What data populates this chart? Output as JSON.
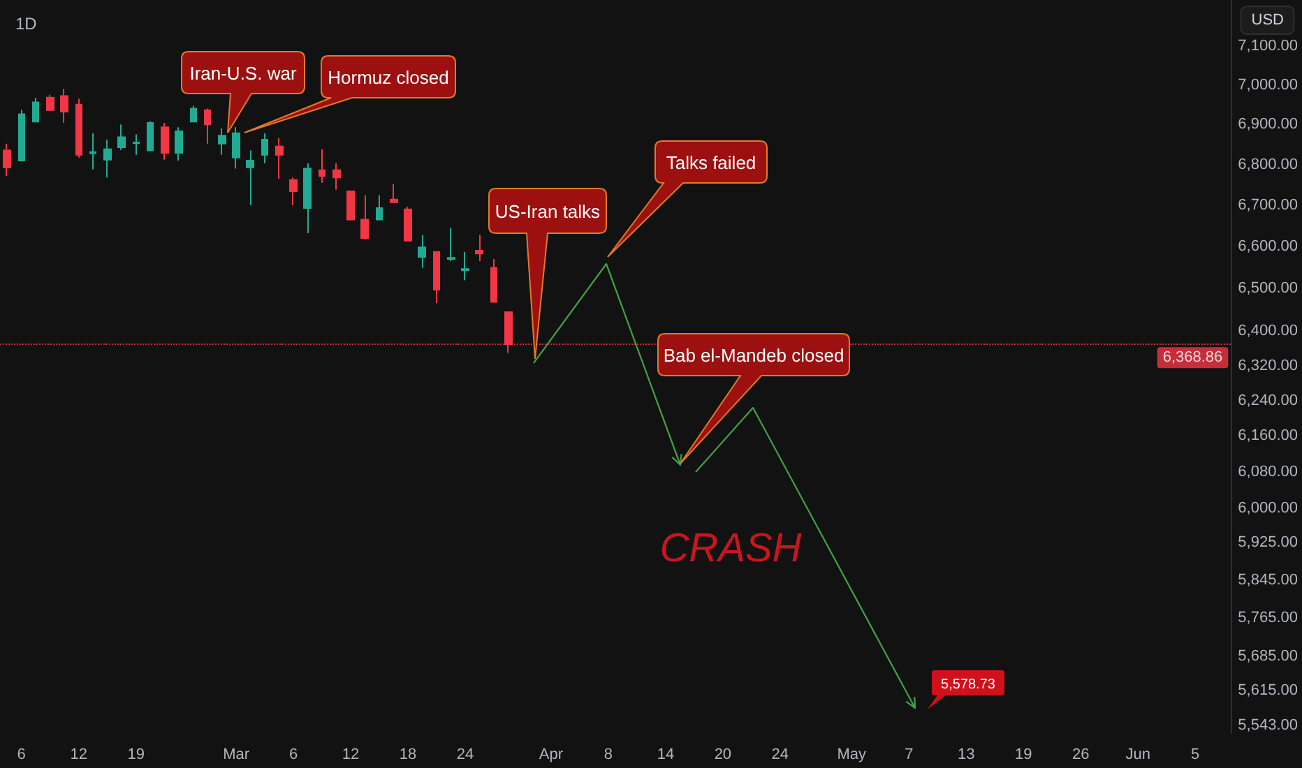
{
  "chart_data": {
    "type": "candlestick",
    "title": "1D",
    "ylabel": "USD",
    "categories": [
      null,
      "6",
      null,
      null,
      null,
      "12",
      null,
      null,
      null,
      "19",
      null,
      null,
      null,
      null,
      null,
      null,
      "Mar",
      null,
      null,
      null,
      "6",
      null,
      null,
      null,
      "12",
      null,
      null,
      null,
      "18",
      null,
      null,
      null,
      "24",
      null,
      null,
      null,
      null,
      null,
      "Apr",
      null,
      null,
      null,
      "8",
      null,
      null,
      null,
      "14",
      null,
      null,
      null,
      "20",
      null,
      null,
      null,
      "24",
      null,
      null,
      null,
      null,
      "May",
      null,
      null,
      null,
      "7",
      null,
      null,
      null,
      "13",
      null,
      null,
      null,
      "19",
      null,
      null,
      null,
      "26",
      null,
      null,
      null,
      "Jun",
      null,
      null,
      null,
      "5",
      null,
      null
    ],
    "ohlc": [
      [
        6835,
        6852,
        6772,
        6793
      ],
      [
        6810,
        6937,
        6807,
        6926
      ],
      [
        6907,
        6967,
        6907,
        6956
      ],
      [
        6968,
        6975,
        6936,
        6936
      ],
      [
        6972,
        6990,
        6904,
        6932
      ],
      [
        6950,
        6965,
        6817,
        6824
      ],
      [
        6828,
        6878,
        6788,
        6831
      ],
      [
        6812,
        6862,
        6768,
        6838
      ],
      [
        6843,
        6900,
        6836,
        6868
      ],
      [
        6853,
        6875,
        6824,
        6855
      ],
      [
        6835,
        6908,
        6833,
        6904
      ],
      [
        6893,
        6904,
        6812,
        6829
      ],
      [
        6829,
        6893,
        6810,
        6883
      ],
      [
        6907,
        6947,
        6907,
        6940
      ],
      [
        6936,
        6940,
        6852,
        6900
      ],
      [
        6852,
        6890,
        6824,
        6872
      ],
      [
        6817,
        6893,
        6790,
        6878
      ],
      [
        6793,
        6835,
        6700,
        6810
      ],
      [
        6824,
        6878,
        6803,
        6862
      ],
      [
        6845,
        6866,
        6765,
        6824
      ],
      [
        6762,
        6768,
        6700,
        6734
      ],
      [
        6693,
        6803,
        6632,
        6790
      ],
      [
        6786,
        6838,
        6755,
        6772
      ],
      [
        6786,
        6803,
        6738,
        6768
      ],
      [
        6734,
        6734,
        6665,
        6665
      ],
      [
        6665,
        6724,
        6617,
        6620
      ],
      [
        6665,
        6724,
        6665,
        6693
      ],
      [
        6714,
        6751,
        6707,
        6707
      ],
      [
        6690,
        6696,
        6614,
        6614
      ],
      [
        6575,
        6628,
        6549,
        6598
      ],
      [
        6587,
        6587,
        6465,
        6497
      ],
      [
        6570,
        6645,
        6565,
        6573
      ],
      [
        6543,
        6587,
        6519,
        6546
      ],
      [
        6590,
        6628,
        6565,
        6583
      ],
      [
        6549,
        6570,
        6468,
        6468
      ],
      [
        6444,
        6444,
        6349,
        6369
      ],
      null,
      null,
      null,
      null,
      null,
      null,
      null,
      null,
      null,
      null,
      null,
      null,
      null,
      null,
      null,
      null,
      null,
      null,
      null,
      null,
      null,
      null,
      null,
      null,
      null,
      null,
      null,
      null,
      null,
      null,
      null,
      null,
      null,
      null,
      null,
      null,
      null,
      null,
      null,
      null,
      null,
      null,
      null,
      null,
      null,
      null,
      null,
      null,
      null,
      null
    ],
    "colors": [
      "#f23645",
      "#22ab94",
      "#22ab94",
      "#f23645",
      "#f23645",
      "#f23645",
      "#22ab94",
      "#22ab94",
      "#22ab94",
      "#22ab94",
      "#22ab94",
      "#f23645",
      "#22ab94",
      "#22ab94",
      "#f23645",
      "#22ab94",
      "#22ab94",
      "#22ab94",
      "#22ab94",
      "#f23645",
      "#f23645",
      "#22ab94",
      "#f23645",
      "#f23645",
      "#f23645",
      "#f23645",
      "#22ab94",
      "#f23645",
      "#f23645",
      "#22ab94",
      "#f23645",
      "#22ab94",
      "#22ab94",
      "#f23645",
      "#f23645",
      "#f23645",
      null,
      null,
      null,
      null,
      null,
      null,
      null,
      null,
      null,
      null,
      null,
      null,
      null,
      null,
      null,
      null,
      null,
      null,
      null,
      null,
      null,
      null,
      null,
      null,
      null,
      null,
      null,
      null,
      null,
      null,
      null,
      null,
      null,
      null,
      null,
      null,
      null,
      null,
      null,
      null,
      null,
      null,
      null,
      null,
      null,
      null,
      null,
      null,
      null,
      null
    ],
    "log": true,
    "ylim": [
      5528,
      7220
    ],
    "yticks": [
      {
        "value": 7100,
        "label": "7,100.00"
      },
      {
        "value": 7000,
        "label": "7,000.00"
      },
      {
        "value": 6900,
        "label": "6,900.00"
      },
      {
        "value": 6800,
        "label": "6,800.00"
      },
      {
        "value": 6700,
        "label": "6,700.00"
      },
      {
        "value": 6600,
        "label": "6,600.00"
      },
      {
        "value": 6500,
        "label": "6,500.00"
      },
      {
        "value": 6400,
        "label": "6,400.00"
      },
      {
        "value": 6320,
        "label": "6,320.00"
      },
      {
        "value": 6240,
        "label": "6,240.00"
      },
      {
        "value": 6160,
        "label": "6,160.00"
      },
      {
        "value": 6080,
        "label": "6,080.00"
      },
      {
        "value": 6000,
        "label": "6,000.00"
      },
      {
        "value": 5925,
        "label": "5,925.00"
      },
      {
        "value": 5845,
        "label": "5,845.00"
      },
      {
        "value": 5765,
        "label": "5,765.00"
      },
      {
        "value": 5685,
        "label": "5,685.00"
      },
      {
        "value": 5615,
        "label": "5,615.00"
      },
      {
        "value": 5543,
        "label": "5,543.00"
      }
    ],
    "ref_lines": [
      {
        "axis": "y",
        "value": 6368.86,
        "label": "6,368.86",
        "color": "#f23645",
        "line_style": "dotted"
      }
    ],
    "annotations": [
      "Iran-U.S. war",
      "Hormuz closed",
      "US-Iran talks",
      "Talks failed",
      "Bab el-Mandeb closed",
      "CRASH",
      "5,578.73"
    ]
  }
}
